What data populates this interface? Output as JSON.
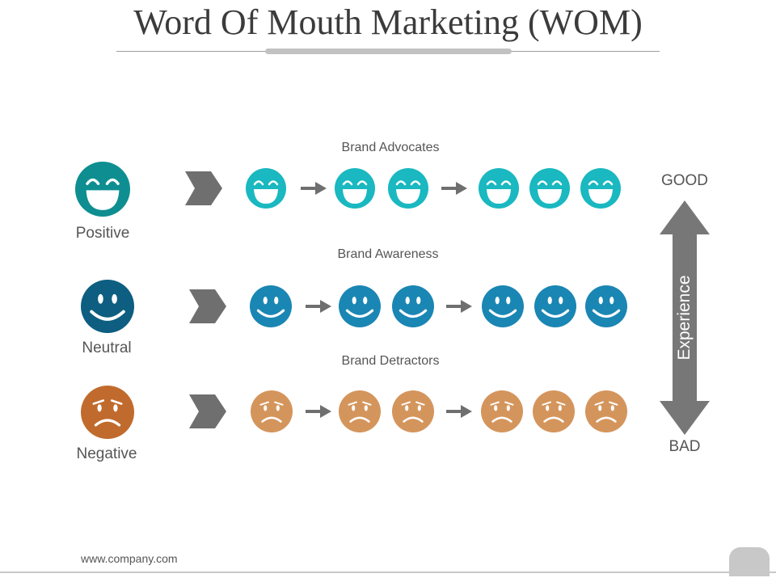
{
  "title": "Word Of Mouth Marketing (WOM)",
  "rows": [
    {
      "category": "Positive",
      "heading": "Brand Advocates",
      "mood": "happy-icon",
      "main_color": "#0e8e90",
      "small_color": "#1ab8c0"
    },
    {
      "category": "Neutral",
      "heading": "Brand Awareness",
      "mood": "smile-icon",
      "main_color": "#0d5e80",
      "small_color": "#1a86b3"
    },
    {
      "category": "Negative",
      "heading": "Brand Detractors",
      "mood": "sad-icon",
      "main_color": "#c06b2d",
      "small_color": "#d4955c"
    }
  ],
  "scale": {
    "top": "GOOD",
    "bottom": "BAD",
    "axis_label": "Experience",
    "arrow_color": "#777777"
  },
  "footer": "www.company.com",
  "colors": {
    "arrow": "#6f6f6f",
    "text": "#555555"
  }
}
